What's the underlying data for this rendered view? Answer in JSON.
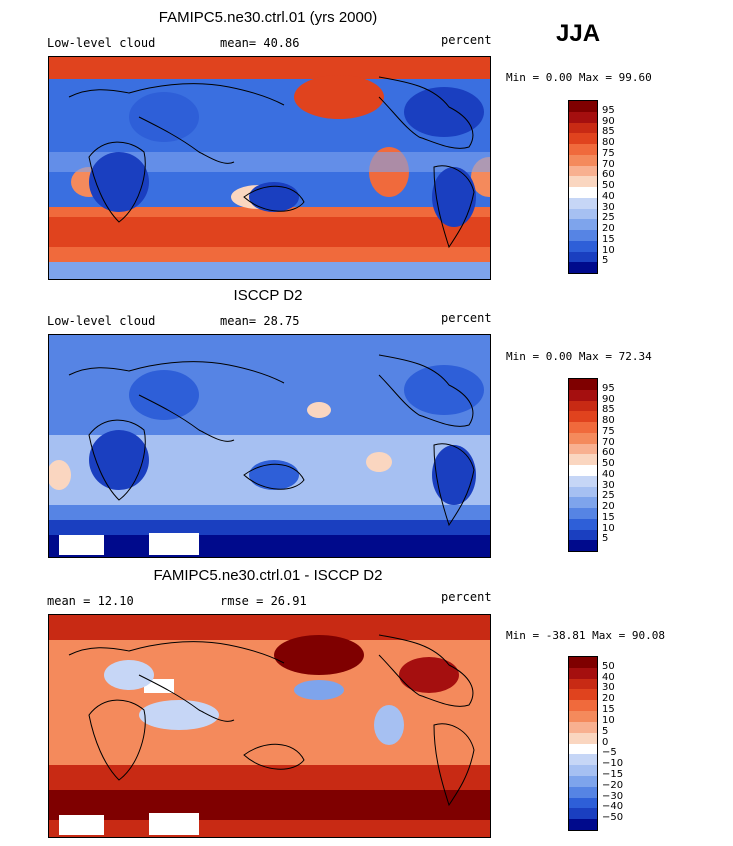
{
  "season": "JJA",
  "panels": [
    {
      "title": "FAMIPC5.ne30.ctrl.01 (yrs 2000)",
      "left_label": "Low-level cloud",
      "mean_label": "mean=  40.86",
      "units": "percent",
      "minmax": "Min =   0.00 Max =  99.60"
    },
    {
      "title": "ISCCP D2",
      "left_label": "Low-level cloud",
      "mean_label": "mean=  28.75",
      "units": "percent",
      "minmax": "Min =   0.00 Max =  72.34"
    },
    {
      "title": "FAMIPC5.ne30.ctrl.01 - ISCCP D2",
      "left_label": "mean =  12.10",
      "mean_label": "rmse =  26.91",
      "units": "percent",
      "minmax": "Min = -38.81 Max =  90.08"
    }
  ],
  "colorbars": {
    "field": {
      "labels": [
        "95",
        "90",
        "85",
        "80",
        "75",
        "70",
        "60",
        "50",
        "40",
        "30",
        "25",
        "20",
        "15",
        "10",
        "5"
      ],
      "colors": [
        "#7f0000",
        "#a50f0f",
        "#c82a14",
        "#e0431e",
        "#f06a3c",
        "#f48a5c",
        "#f8b090",
        "#fad6c0",
        "#ffffff",
        "#c6d6f6",
        "#a6c0f2",
        "#7ea4ec",
        "#5684e4",
        "#2e5fd8",
        "#1a3fc0",
        "#000a8c"
      ]
    },
    "diff": {
      "labels": [
        "50",
        "40",
        "30",
        "20",
        "15",
        "10",
        "5",
        "0",
        "−5",
        "−10",
        "−15",
        "−20",
        "−30",
        "−40",
        "−50"
      ],
      "colors": [
        "#7f0000",
        "#a50f0f",
        "#c82a14",
        "#e0431e",
        "#f06a3c",
        "#f48a5c",
        "#f8b090",
        "#fad6c0",
        "#ffffff",
        "#c6d6f6",
        "#a6c0f2",
        "#7ea4ec",
        "#5684e4",
        "#2e5fd8",
        "#1a3fc0",
        "#000a8c"
      ]
    }
  }
}
